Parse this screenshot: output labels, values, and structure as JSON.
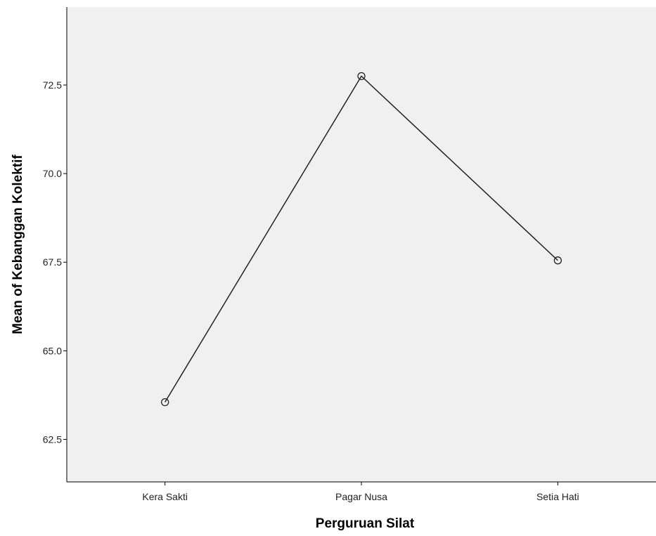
{
  "chart_data": {
    "type": "line",
    "title": "",
    "xlabel": "Perguruan Silat",
    "ylabel": "Mean of Kebanggan Kolektif",
    "categories": [
      "Kera Sakti",
      "Pagar Nusa",
      "Setia Hati"
    ],
    "series": [
      {
        "values": [
          63.55,
          72.75,
          67.55
        ]
      }
    ],
    "ylim": [
      61.3,
      74.7
    ],
    "yticks": [
      62.5,
      65.0,
      67.5,
      70.0,
      72.5
    ],
    "ytick_labels": [
      "62.5",
      "65.0",
      "67.5",
      "70.0",
      "72.5"
    ],
    "grid": false,
    "legend": "none",
    "colors": {
      "plot_background": "#f0f0f0",
      "line": "#222222",
      "axis": "#000000"
    }
  }
}
